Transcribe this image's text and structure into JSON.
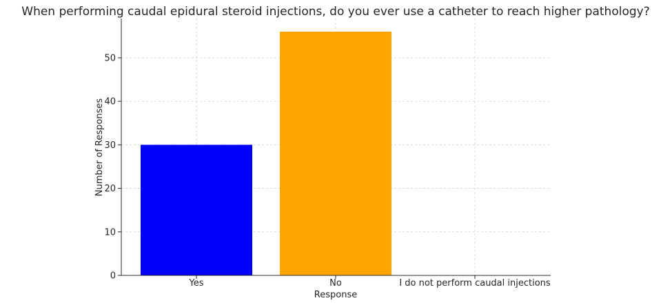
{
  "chart_data": {
    "type": "bar",
    "title": "When performing caudal epidural steroid injections, do you ever use a catheter to reach higher pathology?",
    "xlabel": "Response",
    "ylabel": "Number of Responses",
    "categories": [
      "Yes",
      "No",
      "I do not perform caudal injections"
    ],
    "values": [
      30,
      56,
      0
    ],
    "colors": [
      "#0000ff",
      "#ffa500",
      "#ffa500"
    ],
    "ylim": [
      0,
      59
    ],
    "yticks": [
      0,
      10,
      20,
      30,
      40,
      50
    ],
    "grid": true
  }
}
